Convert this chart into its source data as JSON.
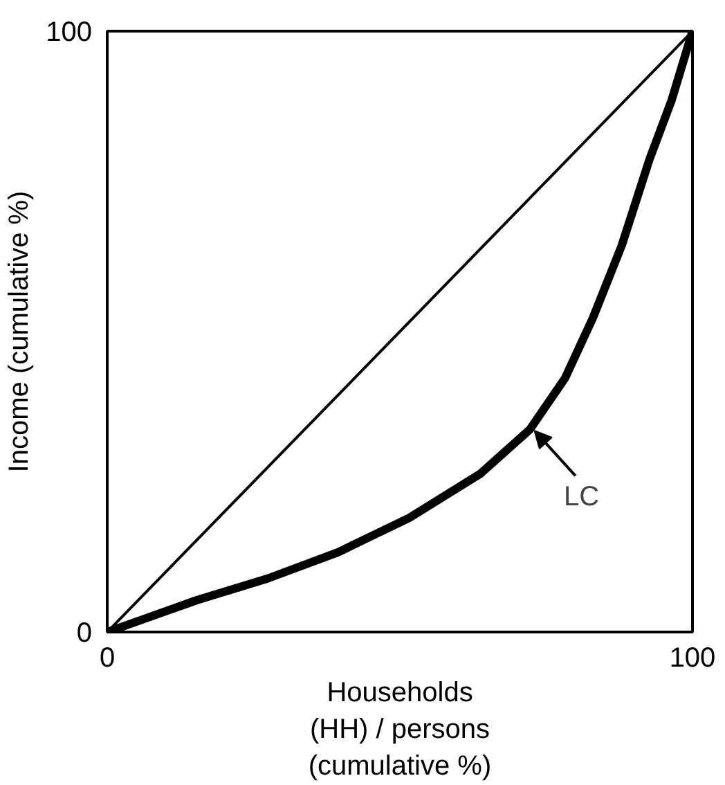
{
  "chart_data": {
    "type": "line",
    "xlabel": "Households\n(HH) / persons\n(cumulative %)",
    "ylabel": "Income (cumulative %)",
    "xlim": [
      0,
      100
    ],
    "ylim": [
      0,
      100
    ],
    "xticks": [
      0,
      100
    ],
    "yticks": [
      0,
      100
    ],
    "marker": "none",
    "line_style": "solid",
    "series": [
      {
        "color": "#000000",
        "x": [
          0,
          15.3,
          27.4,
          39.5,
          51.6,
          63.7,
          72.2,
          78.2,
          83,
          87.9,
          92.7,
          96.4,
          100
        ],
        "values": [
          0,
          5.3,
          8.9,
          13.3,
          19,
          26.3,
          33.7,
          42.2,
          52.3,
          64.3,
          78.8,
          88.4,
          100
        ]
      },
      {
        "color": "#000000",
        "x": [
          0,
          100
        ],
        "values": [
          0,
          100
        ]
      }
    ],
    "annotations": [
      {
        "text": "LC",
        "x": 72,
        "y": 34
      }
    ]
  }
}
